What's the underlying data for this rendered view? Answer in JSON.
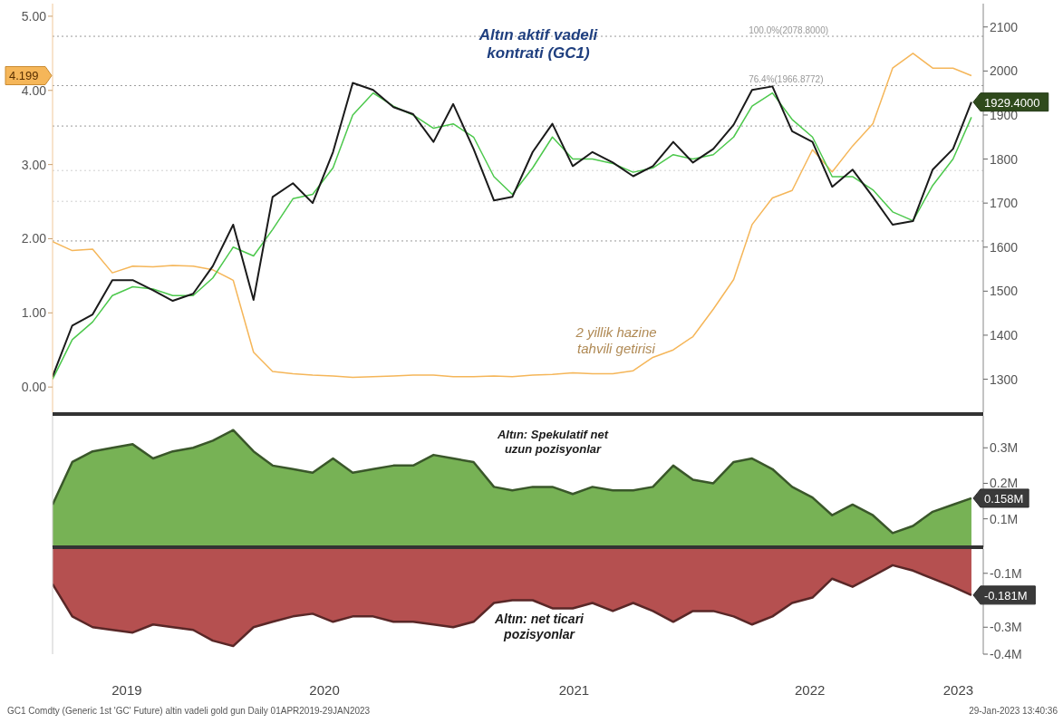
{
  "chart_data": [
    {
      "type": "line",
      "xlim": [
        "2019-04-01",
        "2023-02-16"
      ],
      "ylim": [
        -0.34,
        5.17
      ],
      "yticks": [
        {
          "value": 0,
          "label": "0.00"
        },
        {
          "value": 1,
          "label": "1.00"
        },
        {
          "value": 2,
          "label": "2.00"
        },
        {
          "value": 3,
          "label": "3.00"
        },
        {
          "value": 4,
          "label": "4.00"
        },
        {
          "value": 5,
          "label": "5.00"
        }
      ],
      "y2lim": [
        1225,
        2153
      ],
      "y2ticks": [
        1300,
        1400,
        1500,
        1600,
        1700,
        1800,
        1900,
        2000,
        2100
      ],
      "tick_labels": "y",
      "x": [
        "2019-04-01",
        "2019-05-01",
        "2019-06-01",
        "2019-07-01",
        "2019-08-01",
        "2019-09-01",
        "2019-10-01",
        "2019-11-01",
        "2019-12-01",
        "2020-01-01",
        "2020-02-01",
        "2020-03-01",
        "2020-04-01",
        "2020-05-01",
        "2020-06-01",
        "2020-07-01",
        "2020-08-01",
        "2020-09-01",
        "2020-10-01",
        "2020-11-01",
        "2020-12-01",
        "2021-01-01",
        "2021-02-01",
        "2021-03-01",
        "2021-04-01",
        "2021-05-01",
        "2021-06-01",
        "2021-07-01",
        "2021-08-01",
        "2021-09-01",
        "2021-10-01",
        "2021-11-01",
        "2021-12-01",
        "2022-01-01",
        "2022-02-01",
        "2022-03-01",
        "2022-04-01",
        "2022-05-01",
        "2022-06-01",
        "2022-07-01",
        "2022-08-01",
        "2022-09-01",
        "2022-10-01",
        "2022-11-01",
        "2022-12-01",
        "2023-01-01",
        "2023-01-29"
      ],
      "series": [
        {
          "name": "2 yillik hazine tahvili getirisi",
          "color": "#f5b659",
          "values": [
            1.96,
            1.84,
            1.86,
            1.54,
            1.63,
            1.62,
            1.64,
            1.63,
            1.58,
            1.44,
            0.47,
            0.21,
            0.18,
            0.16,
            0.15,
            0.13,
            0.14,
            0.15,
            0.16,
            0.16,
            0.14,
            0.14,
            0.15,
            0.14,
            0.16,
            0.17,
            0.19,
            0.18,
            0.18,
            0.22,
            0.4,
            0.5,
            0.68,
            1.05,
            1.45,
            2.19,
            2.55,
            2.65,
            3.2,
            2.9,
            3.25,
            3.55,
            4.3,
            4.5,
            4.3,
            4.3,
            4.199
          ]
        },
        {
          "color": "#4cc84c",
          "axis": "y2",
          "values": [
            1300,
            1390,
            1430,
            1490,
            1510,
            1505,
            1490,
            1490,
            1530,
            1600,
            1580,
            1640,
            1710,
            1720,
            1780,
            1900,
            1950,
            1920,
            1900,
            1870,
            1880,
            1850,
            1760,
            1720,
            1780,
            1850,
            1800,
            1800,
            1790,
            1770,
            1780,
            1810,
            1800,
            1810,
            1850,
            1920,
            1950,
            1890,
            1850,
            1760,
            1760,
            1730,
            1680,
            1660,
            1740,
            1800,
            1895
          ]
        },
        {
          "color": "#1a1a1a",
          "axis": "y2",
          "values": [
            1306,
            1422,
            1447,
            1525,
            1525,
            1502,
            1478,
            1494,
            1557,
            1651,
            1480,
            1714,
            1745,
            1700,
            1816,
            1973,
            1957,
            1918,
            1902,
            1839,
            1925,
            1823,
            1706,
            1714,
            1816,
            1880,
            1784,
            1816,
            1792,
            1761,
            1784,
            1839,
            1792,
            1823,
            1878,
            1957,
            1965,
            1863,
            1839,
            1737,
            1776,
            1714,
            1651,
            1659,
            1776,
            1823,
            1929.4
          ],
          "value_labels": [
            null,
            null,
            null,
            null,
            null,
            null,
            null,
            null,
            null,
            null,
            null,
            null,
            null,
            null,
            null,
            null,
            null,
            null,
            null,
            null,
            null,
            null,
            null,
            null,
            null,
            null,
            null,
            null,
            null,
            null,
            null,
            null,
            null,
            null,
            null,
            null,
            null,
            null,
            null,
            null,
            null,
            null,
            null,
            null,
            null,
            null,
            "1929.4000"
          ]
        }
      ],
      "ref_lines": [
        {
          "axis": "y2",
          "value": 2078.8,
          "label": "100.0%(2078.8000)",
          "color": "#9a9a9a",
          "line_style": "dotted"
        },
        {
          "axis": "y2",
          "value": 1966.8772,
          "label": "76.4%(1966.8772)",
          "color": "#9a9a9a",
          "line_style": "dotted"
        },
        {
          "axis": "y2",
          "value": 1875,
          "color": "#9a9a9a",
          "line_style": "dotted"
        },
        {
          "axis": "y2",
          "value": 1774,
          "color": "#d0d0d0",
          "line_style": "dotted"
        },
        {
          "axis": "y2",
          "value": 1704,
          "color": "#d0d0d0",
          "line_style": "dotted"
        },
        {
          "axis": "y2",
          "value": 1614,
          "color": "#9a9a9a",
          "line_style": "dotted"
        }
      ],
      "annotations": [
        "Altın aktif vadeli kontrati (GC1)",
        "4.199"
      ]
    },
    {
      "type": "area",
      "xlim": [
        "2019-04-01",
        "2023-02-16"
      ],
      "ylim": [
        0.02,
        0.39
      ],
      "yticks": [
        {
          "value": 0.1,
          "label": "0.1M"
        },
        {
          "value": 0.2,
          "label": "0.2M"
        },
        {
          "value": 0.3,
          "label": "0.3M"
        }
      ],
      "tick_labels": "y",
      "x": [
        "2019-04-01",
        "2019-05-01",
        "2019-06-01",
        "2019-07-01",
        "2019-08-01",
        "2019-09-01",
        "2019-10-01",
        "2019-11-01",
        "2019-12-01",
        "2020-01-01",
        "2020-02-01",
        "2020-03-01",
        "2020-04-01",
        "2020-05-01",
        "2020-06-01",
        "2020-07-01",
        "2020-08-01",
        "2020-09-01",
        "2020-10-01",
        "2020-11-01",
        "2020-12-01",
        "2021-01-01",
        "2021-02-01",
        "2021-03-01",
        "2021-04-01",
        "2021-05-01",
        "2021-06-01",
        "2021-07-01",
        "2021-08-01",
        "2021-09-01",
        "2021-10-01",
        "2021-11-01",
        "2021-12-01",
        "2022-01-01",
        "2022-02-01",
        "2022-03-01",
        "2022-04-01",
        "2022-05-01",
        "2022-06-01",
        "2022-07-01",
        "2022-08-01",
        "2022-09-01",
        "2022-10-01",
        "2022-11-01",
        "2022-12-01",
        "2023-01-01",
        "2023-01-29"
      ],
      "series": [
        {
          "name": "Altın: Spekulatif net uzun pozisyonlar",
          "color": "#77b255",
          "values": [
            0.14,
            0.26,
            0.29,
            0.3,
            0.31,
            0.27,
            0.29,
            0.3,
            0.32,
            0.35,
            0.29,
            0.25,
            0.24,
            0.23,
            0.27,
            0.23,
            0.24,
            0.25,
            0.25,
            0.28,
            0.27,
            0.26,
            0.19,
            0.18,
            0.19,
            0.19,
            0.17,
            0.19,
            0.18,
            0.18,
            0.19,
            0.25,
            0.21,
            0.2,
            0.26,
            0.27,
            0.24,
            0.19,
            0.16,
            0.11,
            0.14,
            0.11,
            0.06,
            0.08,
            0.12,
            0.14,
            0.158
          ],
          "value_labels": [
            null,
            null,
            null,
            null,
            null,
            null,
            null,
            null,
            null,
            null,
            null,
            null,
            null,
            null,
            null,
            null,
            null,
            null,
            null,
            null,
            null,
            null,
            null,
            null,
            null,
            null,
            null,
            null,
            null,
            null,
            null,
            null,
            null,
            null,
            null,
            null,
            null,
            null,
            null,
            null,
            null,
            null,
            null,
            null,
            null,
            null,
            "0.158M"
          ]
        }
      ]
    },
    {
      "type": "area",
      "xlim": [
        "2019-04-01",
        "2023-02-16"
      ],
      "xticks": [
        {
          "value": "2019-07-23",
          "label": "2019"
        },
        {
          "value": "2020-05-19",
          "label": "2020"
        },
        {
          "value": "2021-06-03",
          "label": "2021"
        },
        {
          "value": "2022-05-28",
          "label": "2022"
        },
        {
          "value": "2023-01-09",
          "label": "2023"
        }
      ],
      "ylim": [
        -0.4,
        -0.01
      ],
      "yticks": [
        {
          "value": -0.1,
          "label": "-0.1M"
        },
        {
          "value": -0.3,
          "label": "-0.3M"
        },
        {
          "value": -0.4,
          "label": "-0.4M"
        }
      ],
      "x": [
        "2019-04-01",
        "2019-05-01",
        "2019-06-01",
        "2019-07-01",
        "2019-08-01",
        "2019-09-01",
        "2019-10-01",
        "2019-11-01",
        "2019-12-01",
        "2020-01-01",
        "2020-02-01",
        "2020-03-01",
        "2020-04-01",
        "2020-05-01",
        "2020-06-01",
        "2020-07-01",
        "2020-08-01",
        "2020-09-01",
        "2020-10-01",
        "2020-11-01",
        "2020-12-01",
        "2021-01-01",
        "2021-02-01",
        "2021-03-01",
        "2021-04-01",
        "2021-05-01",
        "2021-06-01",
        "2021-07-01",
        "2021-08-01",
        "2021-09-01",
        "2021-10-01",
        "2021-11-01",
        "2021-12-01",
        "2022-01-01",
        "2022-02-01",
        "2022-03-01",
        "2022-04-01",
        "2022-05-01",
        "2022-06-01",
        "2022-07-01",
        "2022-08-01",
        "2022-09-01",
        "2022-10-01",
        "2022-11-01",
        "2022-12-01",
        "2023-01-01",
        "2023-01-29"
      ],
      "series": [
        {
          "name": "Altın: net ticari pozisyonlar",
          "color": "#b55050",
          "values": [
            -0.14,
            -0.26,
            -0.3,
            -0.31,
            -0.32,
            -0.29,
            -0.3,
            -0.31,
            -0.35,
            -0.37,
            -0.3,
            -0.28,
            -0.26,
            -0.25,
            -0.28,
            -0.26,
            -0.26,
            -0.28,
            -0.28,
            -0.29,
            -0.3,
            -0.28,
            -0.21,
            -0.2,
            -0.2,
            -0.23,
            -0.23,
            -0.21,
            -0.24,
            -0.21,
            -0.24,
            -0.28,
            -0.24,
            -0.24,
            -0.26,
            -0.29,
            -0.26,
            -0.21,
            -0.19,
            -0.12,
            -0.15,
            -0.11,
            -0.07,
            -0.09,
            -0.12,
            -0.15,
            -0.181
          ],
          "value_labels": [
            null,
            null,
            null,
            null,
            null,
            null,
            null,
            null,
            null,
            null,
            null,
            null,
            null,
            null,
            null,
            null,
            null,
            null,
            null,
            null,
            null,
            null,
            null,
            null,
            null,
            null,
            null,
            null,
            null,
            null,
            null,
            null,
            null,
            null,
            null,
            null,
            null,
            null,
            null,
            null,
            null,
            null,
            null,
            null,
            null,
            null,
            "-0.181M"
          ]
        }
      ],
      "annotations": [
        "GC1 Comdty (Generic 1st 'GC' Future) altin vadeli gold gun  Daily 01APR2019-29JAN2023",
        "29-Jan-2023 13:40:36"
      ]
    }
  ]
}
